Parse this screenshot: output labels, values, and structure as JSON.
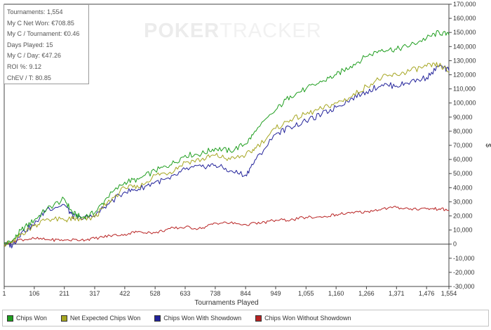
{
  "stats": [
    "Tournaments: 1,554",
    "My C Net Won: €708.85",
    "My C / Tournament: €0.46",
    "Days Played: 15",
    "My C / Day: €47.26",
    "ROI %: 9.12",
    "ChEV / T: 80.85"
  ],
  "watermark": {
    "part1": "POKER",
    "part2": "TRACKER"
  },
  "chart_data": {
    "type": "line",
    "xlabel": "Tournaments Played",
    "ylabel": "$",
    "xlim": [
      1,
      1554
    ],
    "ylim": [
      -30000,
      170000
    ],
    "xticks": [
      "1",
      "106",
      "211",
      "317",
      "422",
      "528",
      "633",
      "738",
      "844",
      "949",
      "1,055",
      "1,160",
      "1,266",
      "1,371",
      "1,476",
      "1,554"
    ],
    "xtick_values": [
      1,
      106,
      211,
      317,
      422,
      528,
      633,
      738,
      844,
      949,
      1055,
      1160,
      1266,
      1371,
      1476,
      1554
    ],
    "yticks": [
      "170,000",
      "160,000",
      "150,000",
      "140,000",
      "130,000",
      "120,000",
      "110,000",
      "100,000",
      "90,000",
      "80,000",
      "70,000",
      "60,000",
      "50,000",
      "40,000",
      "30,000",
      "20,000",
      "10,000",
      "0",
      "-10,000",
      "-20,000",
      "-30,000"
    ],
    "ytick_values": [
      170000,
      160000,
      150000,
      140000,
      130000,
      120000,
      110000,
      100000,
      90000,
      80000,
      70000,
      60000,
      50000,
      40000,
      30000,
      20000,
      10000,
      0,
      -10000,
      -20000,
      -30000
    ],
    "grid": false,
    "legend_position": "bottom",
    "series": [
      {
        "name": "Chips Won",
        "color": "#1f9e1f",
        "x": [
          1,
          30,
          60,
          106,
          150,
          211,
          240,
          270,
          317,
          360,
          422,
          470,
          528,
          580,
          633,
          690,
          738,
          790,
          844,
          880,
          949,
          1000,
          1055,
          1110,
          1160,
          1210,
          1266,
          1320,
          1371,
          1420,
          1476,
          1520,
          1554
        ],
        "y": [
          0,
          2000,
          10000,
          17000,
          25000,
          32000,
          22000,
          19000,
          22000,
          33000,
          44000,
          46000,
          52000,
          56000,
          63000,
          64000,
          68000,
          66000,
          71000,
          80000,
          95000,
          105000,
          110000,
          115000,
          120000,
          126000,
          133000,
          138000,
          138000,
          141000,
          146000,
          150000,
          148000
        ]
      },
      {
        "name": "Net Expected Chips Won",
        "color": "#a6a622",
        "x": [
          1,
          30,
          60,
          106,
          150,
          211,
          240,
          270,
          317,
          360,
          422,
          470,
          528,
          580,
          633,
          690,
          738,
          790,
          844,
          880,
          949,
          1000,
          1055,
          1110,
          1160,
          1210,
          1266,
          1320,
          1371,
          1420,
          1476,
          1520,
          1554
        ],
        "y": [
          0,
          1000,
          7000,
          13000,
          18000,
          17000,
          18000,
          17000,
          19000,
          29000,
          40000,
          40000,
          49000,
          51000,
          58000,
          60000,
          63000,
          60000,
          63000,
          68000,
          82000,
          88000,
          92000,
          96000,
          100000,
          104000,
          112000,
          118000,
          120000,
          123000,
          126000,
          127000,
          122000
        ]
      },
      {
        "name": "Chips Won With Showdown",
        "color": "#22229a",
        "x": [
          1,
          30,
          60,
          106,
          150,
          211,
          240,
          270,
          317,
          360,
          422,
          470,
          528,
          580,
          633,
          690,
          738,
          790,
          844,
          880,
          949,
          1000,
          1055,
          1110,
          1160,
          1210,
          1266,
          1320,
          1371,
          1420,
          1476,
          1520,
          1554
        ],
        "y": [
          0,
          -1000,
          8000,
          14000,
          25000,
          28000,
          20000,
          18000,
          20000,
          28000,
          37000,
          39000,
          44000,
          46000,
          53000,
          55000,
          56000,
          52000,
          49000,
          60000,
          78000,
          83000,
          87000,
          92000,
          97000,
          103000,
          108000,
          113000,
          112000,
          115000,
          118000,
          126000,
          123000
        ]
      },
      {
        "name": "Chips Won Without Showdown",
        "color": "#b82222",
        "x": [
          1,
          50,
          106,
          160,
          211,
          270,
          317,
          370,
          422,
          470,
          528,
          580,
          633,
          690,
          738,
          790,
          844,
          900,
          949,
          1000,
          1055,
          1110,
          1160,
          1210,
          1266,
          1320,
          1371,
          1420,
          1476,
          1520,
          1554
        ],
        "y": [
          0,
          3000,
          4000,
          3000,
          3000,
          3000,
          4000,
          6000,
          7000,
          9000,
          8000,
          11000,
          12000,
          11000,
          15000,
          15000,
          14000,
          15000,
          17000,
          17000,
          19000,
          19000,
          21000,
          22000,
          23000,
          25000,
          26000,
          25000,
          25000,
          25000,
          24000
        ]
      }
    ]
  }
}
